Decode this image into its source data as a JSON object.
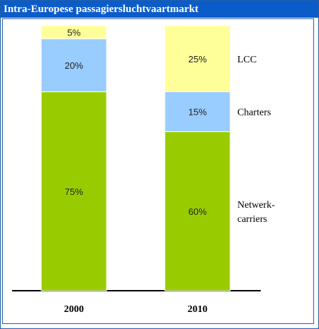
{
  "window": {
    "title": "Intra-Europese passagiersluchtvaartmarkt"
  },
  "colors": {
    "title_bar": "#0b5cc9",
    "border": "#1f5fa8",
    "Netwerk-carriers": "#99cc00",
    "Charters": "#99ccff",
    "LCC": "#ffff99"
  },
  "chart_data": {
    "type": "bar",
    "stacked": true,
    "categories": [
      "2000",
      "2010"
    ],
    "series": [
      {
        "name": "Netwerk-carriers",
        "legend_lines": [
          "Netwerk-",
          "carriers"
        ],
        "values": [
          75,
          60
        ],
        "labels": [
          "75%",
          "60%"
        ]
      },
      {
        "name": "Charters",
        "legend_lines": [
          "Charters"
        ],
        "values": [
          20,
          15
        ],
        "labels": [
          "20%",
          "15%"
        ]
      },
      {
        "name": "LCC",
        "legend_lines": [
          "LCC"
        ],
        "values": [
          5,
          25
        ],
        "labels": [
          "5%",
          "25%"
        ]
      }
    ],
    "ylim": [
      0,
      100
    ],
    "grid": false,
    "legend": "right"
  }
}
